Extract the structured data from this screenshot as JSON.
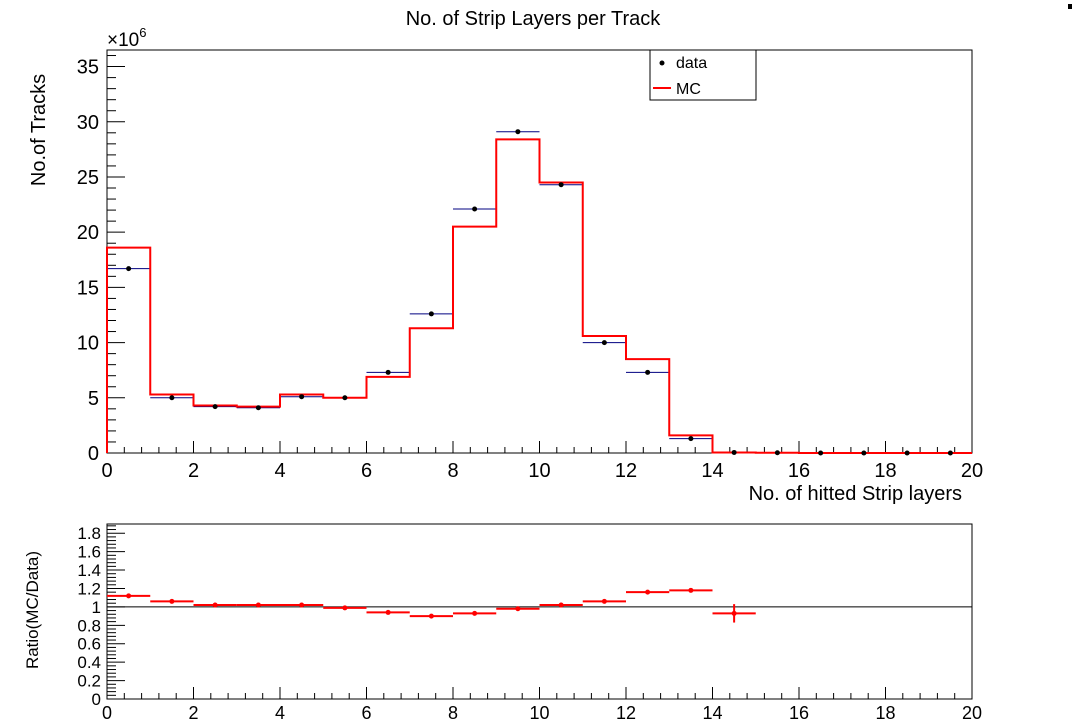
{
  "chart_data": [
    {
      "type": "histogram",
      "title": "No. of Strip Layers per Track",
      "xlabel": "No. of hitted Strip layers",
      "ylabel": "No.of Tracks",
      "y_exponent_label": "×10",
      "y_exponent_power": "6",
      "xlim": [
        0,
        20
      ],
      "ylim": [
        0,
        36.5
      ],
      "bin_edges": [
        0,
        1,
        2,
        3,
        4,
        5,
        6,
        7,
        8,
        9,
        10,
        11,
        12,
        13,
        14,
        15,
        16,
        17,
        18,
        19,
        20
      ],
      "x_ticks": [
        0,
        2,
        4,
        6,
        8,
        10,
        12,
        14,
        16,
        18,
        20
      ],
      "y_ticks": [
        0,
        5,
        10,
        15,
        20,
        25,
        30,
        35
      ],
      "legend_position": "top-right",
      "series": [
        {
          "name": "data",
          "style": "points",
          "color": "#000000",
          "errorbar_color": "#000080",
          "values": [
            16.7,
            5.0,
            4.2,
            4.1,
            5.1,
            5.0,
            7.3,
            12.6,
            22.1,
            29.1,
            24.3,
            10.0,
            7.3,
            1.3,
            0.05,
            0.02,
            0,
            0,
            0,
            0
          ]
        },
        {
          "name": "MC",
          "style": "step",
          "color": "#ff0000",
          "values": [
            18.6,
            5.3,
            4.3,
            4.2,
            5.3,
            5.0,
            6.9,
            11.3,
            20.5,
            28.4,
            24.5,
            10.6,
            8.5,
            1.6,
            0.05,
            0.02,
            0,
            0,
            0,
            0
          ]
        }
      ]
    },
    {
      "type": "scatter",
      "title": "",
      "xlabel": "",
      "ylabel": "Ratio(MC/Data)",
      "xlim": [
        0,
        20
      ],
      "ylim": [
        0,
        1.9
      ],
      "x_ticks": [
        0,
        2,
        4,
        6,
        8,
        10,
        12,
        14,
        16,
        18,
        20
      ],
      "y_ticks": [
        0,
        0.2,
        0.4,
        0.6,
        0.8,
        1,
        1.2,
        1.4,
        1.6,
        1.8
      ],
      "reference_line": 1,
      "series": [
        {
          "name": "",
          "color": "#ff0000",
          "x": [
            0.5,
            1.5,
            2.5,
            3.5,
            4.5,
            5.5,
            6.5,
            7.5,
            8.5,
            9.5,
            10.5,
            11.5,
            12.5,
            13.5,
            14.5
          ],
          "y": [
            1.12,
            1.06,
            1.02,
            1.02,
            1.02,
            0.99,
            0.94,
            0.9,
            0.93,
            0.98,
            1.02,
            1.06,
            1.16,
            1.18,
            0.93
          ],
          "y_err": [
            0,
            0,
            0,
            0,
            0,
            0,
            0,
            0,
            0,
            0,
            0,
            0,
            0,
            0,
            0.1
          ]
        }
      ]
    }
  ]
}
